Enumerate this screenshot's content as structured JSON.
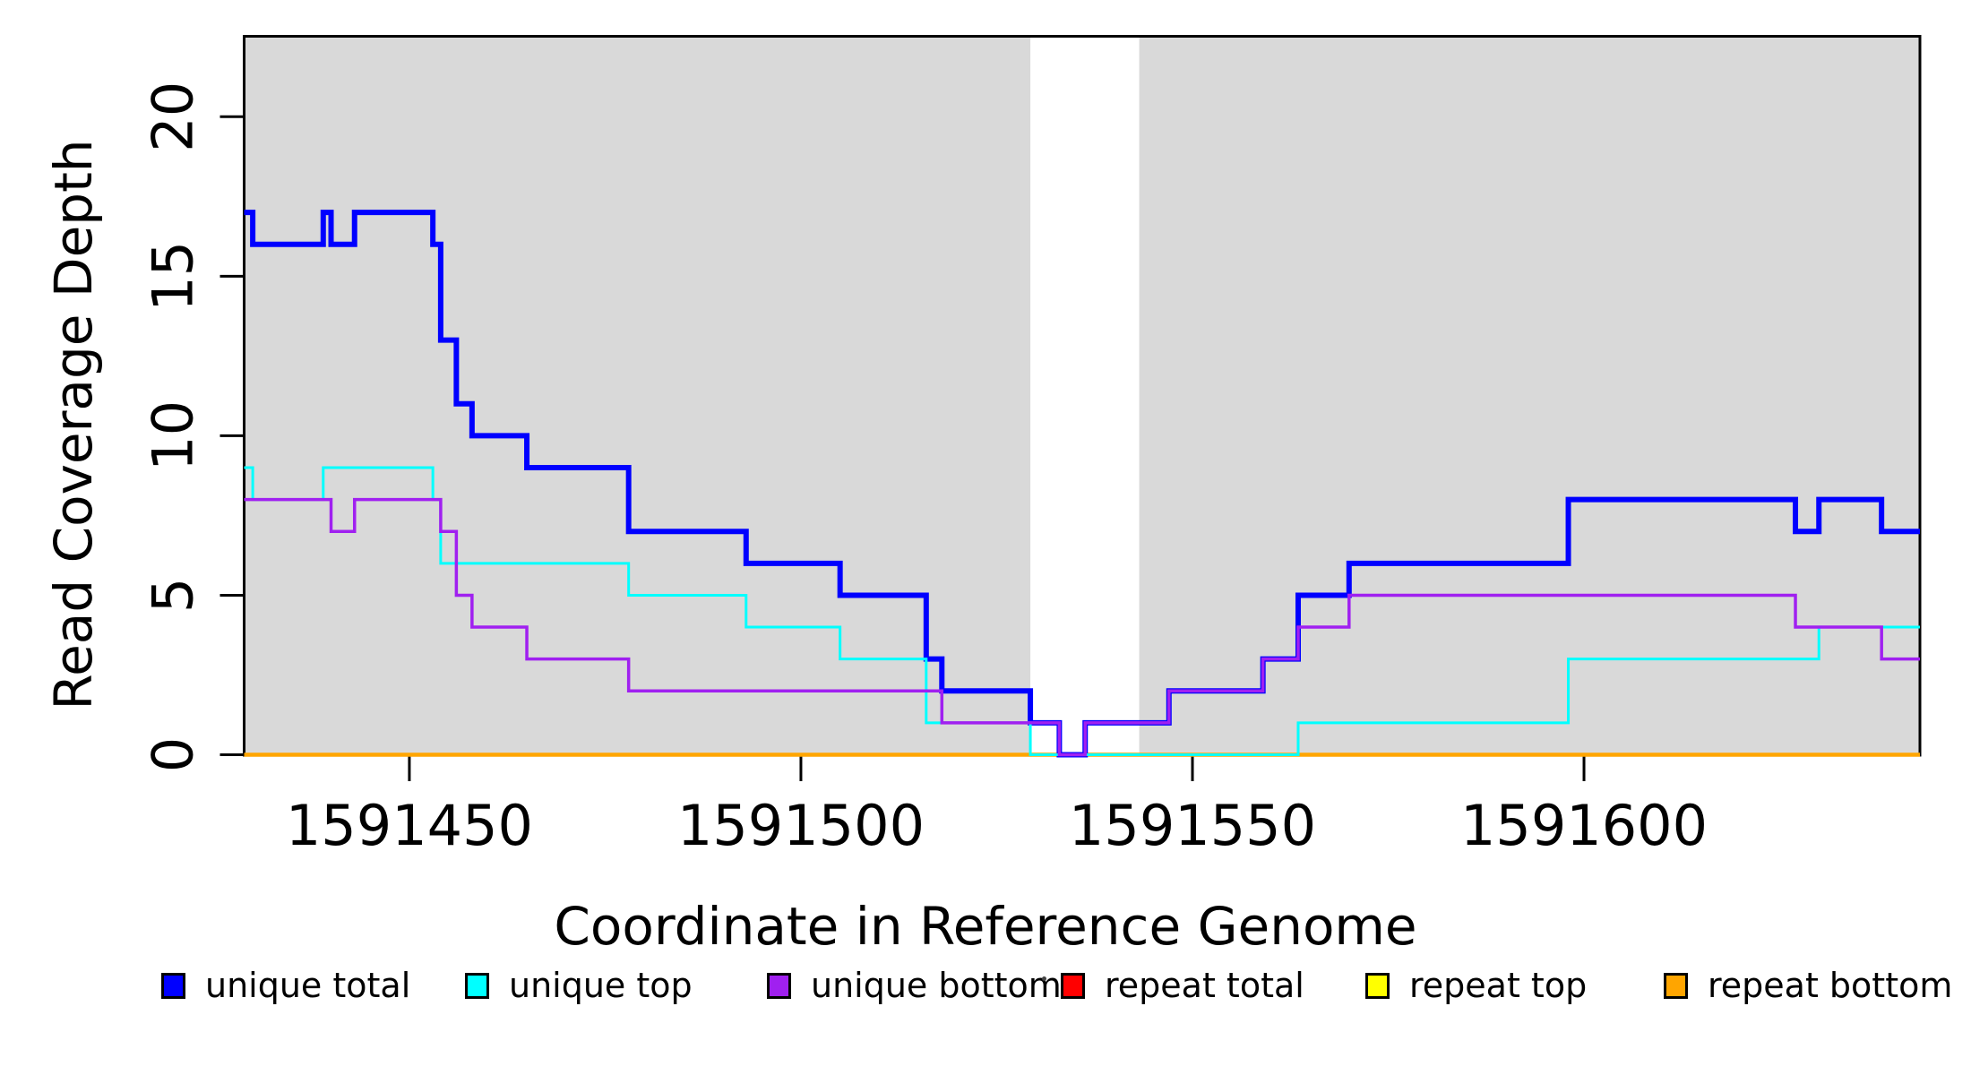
{
  "chart_data": {
    "type": "line",
    "subtype": "step",
    "title": "",
    "xlabel": "Coordinate in Reference Genome",
    "ylabel": "Read Coverage Depth",
    "xlim": [
      1591428.9,
      1591642.9
    ],
    "ylim": [
      0,
      22.55
    ],
    "x_tick_values": [
      1591450,
      1591500,
      1591550,
      1591600
    ],
    "x_tick_labels": [
      "1591450",
      "1591500",
      "1591550",
      "1591600"
    ],
    "y_tick_values": [
      0,
      5,
      10,
      15,
      20
    ],
    "y_tick_labels": [
      "0",
      "5",
      "10",
      "15",
      "20"
    ],
    "grid": false,
    "panel_shading": {
      "color": "#d9d9d9",
      "regions": [
        [
          1591428.9,
          1591529.3
        ],
        [
          1591543.2,
          1591642.9
        ]
      ]
    },
    "series": [
      {
        "name": "repeat total",
        "color": "#ff0000",
        "line_width": 4,
        "breaks": [
          1591428.9,
          1591642.9
        ],
        "values": [
          0
        ]
      },
      {
        "name": "repeat top",
        "color": "#ffff00",
        "line_width": 4,
        "breaks": [
          1591428.9,
          1591642.9
        ],
        "values": [
          0
        ]
      },
      {
        "name": "repeat bottom",
        "color": "#ffa500",
        "line_width": 4.5,
        "breaks": [
          1591428.9,
          1591642.9
        ],
        "values": [
          0
        ]
      },
      {
        "name": "unique total",
        "color": "#0000ff",
        "line_width": 6,
        "breaks": [
          1591428.9,
          1591430,
          1591439,
          1591440,
          1591443,
          1591453,
          1591454,
          1591456,
          1591458,
          1591465,
          1591478,
          1591493,
          1591505,
          1591516,
          1591518,
          1591529.3,
          1591533,
          1591536.3,
          1591547,
          1591559,
          1591563.5,
          1591570,
          1591598,
          1591627,
          1591630,
          1591638,
          1591642.9
        ],
        "values": [
          17,
          16,
          17,
          16,
          17,
          16,
          13,
          11,
          10,
          9,
          7,
          6,
          5,
          3,
          2,
          1,
          0,
          1,
          2,
          3,
          5,
          6,
          8,
          7,
          8,
          7
        ]
      },
      {
        "name": "unique top",
        "color": "#00ffff",
        "line_width": 3,
        "breaks": [
          1591428.9,
          1591430,
          1591439,
          1591453,
          1591454,
          1591478,
          1591493,
          1591505,
          1591516,
          1591529.3,
          1591563.5,
          1591598,
          1591630,
          1591642.9
        ],
        "values": [
          9,
          8,
          9,
          8,
          6,
          5,
          4,
          3,
          1,
          0,
          1,
          3,
          4
        ]
      },
      {
        "name": "unique bottom",
        "color": "#a020f0",
        "line_width": 3.5,
        "breaks": [
          1591428.9,
          1591440,
          1591443,
          1591454,
          1591456,
          1591458,
          1591465,
          1591478,
          1591518,
          1591533,
          1591536.3,
          1591547,
          1591559,
          1591563.5,
          1591570,
          1591627,
          1591638,
          1591642.9
        ],
        "values": [
          8,
          7,
          8,
          7,
          5,
          4,
          3,
          2,
          1,
          0,
          1,
          2,
          3,
          4,
          5,
          4,
          3
        ]
      }
    ],
    "legend": {
      "position": "bottom",
      "entries": [
        {
          "label": "unique total",
          "color": "#0000ff"
        },
        {
          "label": "unique top",
          "color": "#00ffff"
        },
        {
          "label": "unique bottom",
          "color": "#a020f0"
        },
        {
          "label": "repeat total",
          "color": "#ff0000"
        },
        {
          "label": "repeat top",
          "color": "#ffff00"
        },
        {
          "label": "repeat bottom",
          "color": "#ffa500"
        }
      ]
    }
  }
}
